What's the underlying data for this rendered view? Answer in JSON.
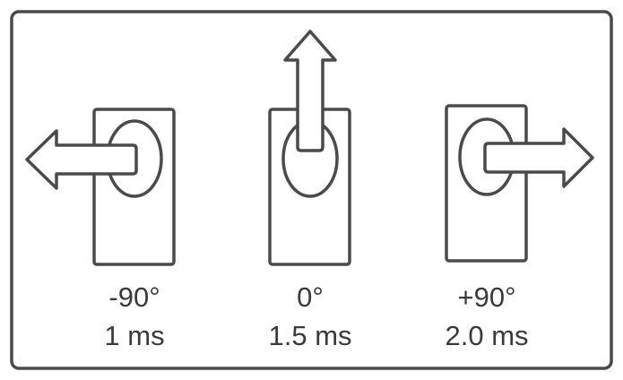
{
  "positions": [
    {
      "angle": "-90°",
      "pulse": "1 ms",
      "direction": "left"
    },
    {
      "angle": "0°",
      "pulse": "1.5 ms",
      "direction": "up"
    },
    {
      "angle": "+90°",
      "pulse": "2.0 ms",
      "direction": "right"
    }
  ],
  "colors": {
    "stroke": "#4a4a4a",
    "text": "#3a3a3a",
    "background": "#ffffff"
  }
}
